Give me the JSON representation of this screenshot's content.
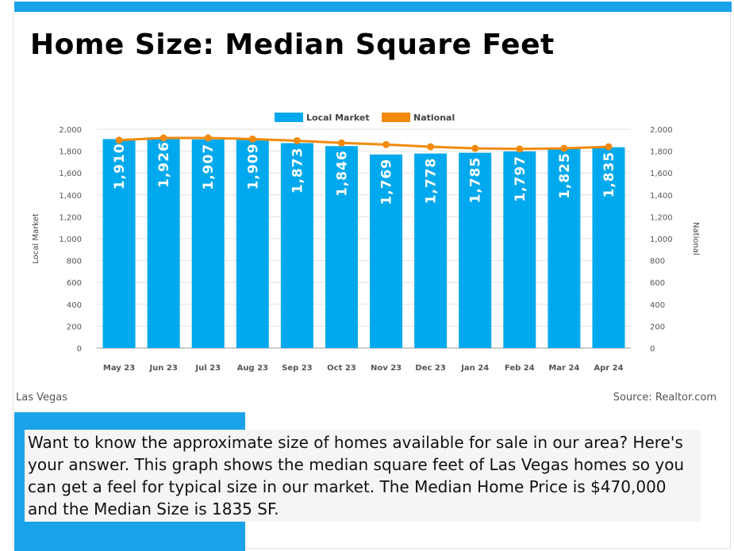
{
  "header": {
    "title": "Home Size: Median Square Feet"
  },
  "footer": {
    "location": "Las Vegas",
    "source": "Source: Realtor.com"
  },
  "description": "Want to know the approximate size of homes available for sale in our area? Here's your answer. This graph shows the median square feet of Las Vegas homes so you can get a feel for typical size in our market.  The Median Home Price is $470,000 and the Median Size is 1835 SF.",
  "colors": {
    "accent": "#1aa3e8",
    "bar": "#00a9ed",
    "national": "#f28a0c"
  },
  "chart_data": {
    "type": "bar",
    "categories": [
      "May 23",
      "Jun 23",
      "Jul 23",
      "Aug 23",
      "Sep 23",
      "Oct 23",
      "Nov 23",
      "Dec 23",
      "Jan 24",
      "Feb 24",
      "Mar 24",
      "Apr 24"
    ],
    "series": [
      {
        "name": "Local Market",
        "type": "bar",
        "values": [
          1910,
          1926,
          1907,
          1909,
          1873,
          1846,
          1769,
          1778,
          1785,
          1797,
          1825,
          1835
        ]
      },
      {
        "name": "National",
        "type": "line",
        "values": [
          1900,
          1920,
          1920,
          1910,
          1895,
          1875,
          1860,
          1840,
          1825,
          1820,
          1825,
          1840
        ]
      }
    ],
    "ylabel": "Local Market",
    "y2label": "National",
    "ylim": [
      0,
      2000
    ],
    "y2lim": [
      0,
      2000
    ],
    "yticks": [
      "0",
      "200",
      "400",
      "600",
      "800",
      "1,000",
      "1,200",
      "1,400",
      "1,600",
      "1,800",
      "2,000"
    ],
    "y2ticks": [
      "0",
      "200",
      "400",
      "600",
      "800",
      "1,000",
      "1,200",
      "1,400",
      "1,600",
      "1,800",
      "2,000"
    ],
    "data_labels": [
      "1,910",
      "1,926",
      "1,907",
      "1,909",
      "1,873",
      "1,846",
      "1,769",
      "1,778",
      "1,785",
      "1,797",
      "1,825",
      "1,835"
    ],
    "legend": "top-center",
    "grid": true
  }
}
